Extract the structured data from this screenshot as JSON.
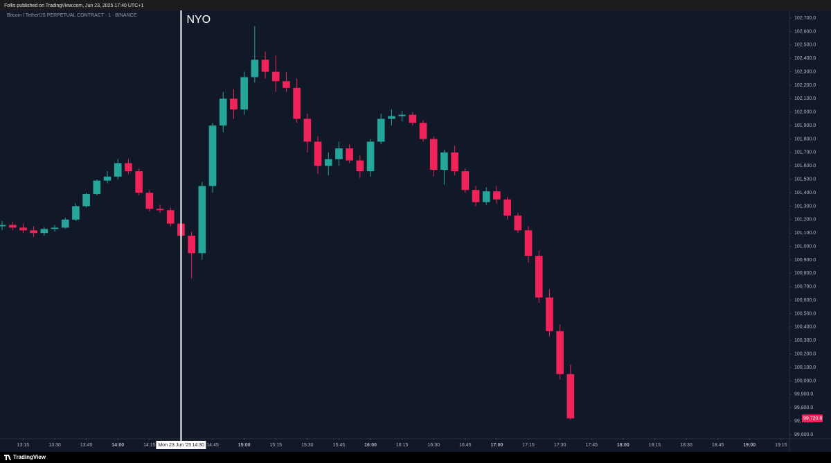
{
  "header": "Follis published on TradingView.com, Jun 23, 2025 17:40 UTC+1",
  "footer": "TradingView",
  "chart_data": {
    "type": "candlestick",
    "title": "Bitcoin / TetherUS PERPETUAL CONTRACT · 1 · BINANCE",
    "up_color": "#26a69a",
    "down_color": "#f0245a",
    "x": [
      785,
      790,
      795,
      800,
      805,
      810,
      815,
      820,
      825,
      830,
      835,
      840,
      845,
      850,
      855,
      860,
      865,
      870,
      875,
      880,
      885,
      890,
      895,
      900,
      905,
      910,
      915,
      920,
      925,
      930,
      935,
      940,
      945,
      950,
      955,
      960,
      965,
      970,
      975,
      980,
      985,
      990,
      995,
      1000,
      1005,
      1010,
      1015,
      1020,
      1025,
      1030,
      1035,
      1040,
      1045,
      1050,
      1055
    ],
    "open": [
      101150,
      101160,
      101140,
      101120,
      101100,
      101130,
      101140,
      101200,
      101300,
      101390,
      101490,
      101520,
      101620,
      101560,
      101400,
      101280,
      101270,
      101170,
      101080,
      100950,
      101450,
      101900,
      102100,
      102020,
      102260,
      102390,
      102300,
      102230,
      102180,
      101950,
      101780,
      101600,
      101650,
      101730,
      101640,
      101560,
      101780,
      101950,
      101970,
      101980,
      101920,
      101800,
      101570,
      101700,
      101560,
      101420,
      101330,
      101410,
      101350,
      101230,
      101120,
      100930,
      100620,
      100370,
      100050
    ],
    "high": [
      101190,
      101185,
      101170,
      101150,
      101145,
      101160,
      101215,
      101320,
      101400,
      101500,
      101560,
      101650,
      101650,
      101580,
      101420,
      101310,
      101290,
      101190,
      101110,
      101480,
      101920,
      102150,
      102170,
      102300,
      102640,
      102450,
      102420,
      102300,
      102250,
      101990,
      101820,
      101700,
      101780,
      101760,
      101680,
      101800,
      101990,
      102020,
      102010,
      102000,
      101940,
      101820,
      101720,
      101750,
      101580,
      101450,
      101440,
      101450,
      101370,
      101250,
      101150,
      100970,
      100680,
      100420,
      100120
    ],
    "low": [
      101120,
      101120,
      101100,
      101070,
      101080,
      101110,
      101130,
      101190,
      101290,
      101380,
      101470,
      101500,
      101540,
      101380,
      101260,
      101250,
      101150,
      101050,
      100760,
      100900,
      101400,
      101850,
      101950,
      101980,
      102220,
      102250,
      102150,
      102150,
      101920,
      101700,
      101540,
      101530,
      101600,
      101620,
      101510,
      101520,
      101760,
      101900,
      101930,
      101900,
      101780,
      101520,
      101460,
      101530,
      101400,
      101300,
      101310,
      101320,
      101200,
      101100,
      100880,
      100580,
      100330,
      100010,
      99710
    ],
    "close": [
      101160,
      101140,
      101120,
      101100,
      101130,
      101140,
      101200,
      101300,
      101390,
      101490,
      101520,
      101620,
      101560,
      101400,
      101280,
      101270,
      101170,
      101080,
      100950,
      101450,
      101900,
      102100,
      102020,
      102260,
      102390,
      102300,
      102230,
      102180,
      101950,
      101780,
      101600,
      101650,
      101730,
      101640,
      101560,
      101780,
      101950,
      101970,
      101980,
      101920,
      101800,
      101570,
      101700,
      101560,
      101420,
      101330,
      101410,
      101350,
      101230,
      101120,
      100930,
      100620,
      100370,
      100050,
      99720.8
    ],
    "last_price": {
      "value": 99720.8,
      "label": "99,720.8"
    },
    "vline": {
      "x": 870,
      "text": "NYO",
      "date_label": "Mon 23 Jun '25",
      "time_label": "14:30"
    },
    "xlim": [
      784,
      1159
    ],
    "ylim": [
      99574,
      102757
    ],
    "xticks": [
      {
        "value": 795,
        "label": "13:15"
      },
      {
        "value": 810,
        "label": "13:30"
      },
      {
        "value": 825,
        "label": "13:45"
      },
      {
        "value": 840,
        "label": "14:00"
      },
      {
        "value": 855,
        "label": "14:15"
      },
      {
        "value": 885,
        "label": "14:45"
      },
      {
        "value": 900,
        "label": "15:00"
      },
      {
        "value": 915,
        "label": "15:15"
      },
      {
        "value": 930,
        "label": "15:30"
      },
      {
        "value": 945,
        "label": "15:45"
      },
      {
        "value": 960,
        "label": "16:00"
      },
      {
        "value": 975,
        "label": "16:15"
      },
      {
        "value": 990,
        "label": "16:30"
      },
      {
        "value": 1005,
        "label": "16:45"
      },
      {
        "value": 1020,
        "label": "17:00"
      },
      {
        "value": 1035,
        "label": "17:15"
      },
      {
        "value": 1050,
        "label": "17:30"
      },
      {
        "value": 1065,
        "label": "17:45"
      },
      {
        "value": 1080,
        "label": "18:00"
      },
      {
        "value": 1095,
        "label": "18:15"
      },
      {
        "value": 1110,
        "label": "18:30"
      },
      {
        "value": 1125,
        "label": "18:45"
      },
      {
        "value": 1140,
        "label": "19:00"
      },
      {
        "value": 1155,
        "label": "19:15"
      }
    ],
    "yticks": [
      {
        "value": 102700,
        "label": "102,700.0"
      },
      {
        "value": 102600,
        "label": "102,600.0"
      },
      {
        "value": 102500,
        "label": "102,500.0"
      },
      {
        "value": 102400,
        "label": "102,400.0"
      },
      {
        "value": 102300,
        "label": "102,300.0"
      },
      {
        "value": 102200,
        "label": "102,200.0"
      },
      {
        "value": 102100,
        "label": "102,100.0"
      },
      {
        "value": 102000,
        "label": "102,000.0"
      },
      {
        "value": 101900,
        "label": "101,900.0"
      },
      {
        "value": 101800,
        "label": "101,800.0"
      },
      {
        "value": 101700,
        "label": "101,700.0"
      },
      {
        "value": 101600,
        "label": "101,600.0"
      },
      {
        "value": 101500,
        "label": "101,500.0"
      },
      {
        "value": 101400,
        "label": "101,400.0"
      },
      {
        "value": 101300,
        "label": "101,300.0"
      },
      {
        "value": 101200,
        "label": "101,200.0"
      },
      {
        "value": 101100,
        "label": "101,100.0"
      },
      {
        "value": 101000,
        "label": "101,000.0"
      },
      {
        "value": 100900,
        "label": "100,900.0"
      },
      {
        "value": 100800,
        "label": "100,800.0"
      },
      {
        "value": 100700,
        "label": "100,700.0"
      },
      {
        "value": 100600,
        "label": "100,600.0"
      },
      {
        "value": 100500,
        "label": "100,500.0"
      },
      {
        "value": 100400,
        "label": "100,400.0"
      },
      {
        "value": 100300,
        "label": "100,300.0"
      },
      {
        "value": 100200,
        "label": "100,200.0"
      },
      {
        "value": 100100,
        "label": "100,100.0"
      },
      {
        "value": 100000,
        "label": "100,000.0"
      },
      {
        "value": 99900,
        "label": "99,900.0"
      },
      {
        "value": 99800,
        "label": "99,800.0"
      },
      {
        "value": 99700,
        "label": "99,700.0"
      },
      {
        "value": 99600,
        "label": "99,600.0"
      }
    ]
  }
}
